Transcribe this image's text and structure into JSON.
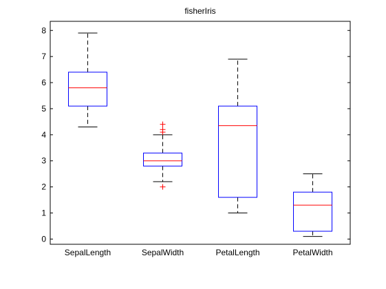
{
  "chart_data": {
    "type": "box",
    "title": "fisherIris",
    "xlabel": "",
    "ylabel": "",
    "ylim": [
      -0.2,
      8.35
    ],
    "yticks": [
      0,
      1,
      2,
      3,
      4,
      5,
      6,
      7,
      8
    ],
    "categories": [
      "SepalLength",
      "SepalWidth",
      "PetalLength",
      "PetalWidth"
    ],
    "boxes": [
      {
        "min": 4.3,
        "q1": 5.1,
        "median": 5.8,
        "q3": 6.4,
        "max": 7.9,
        "outliers": []
      },
      {
        "min": 2.2,
        "q1": 2.8,
        "median": 3.0,
        "q3": 3.3,
        "max": 4.0,
        "outliers": [
          4.1,
          4.2,
          4.4,
          2.0
        ]
      },
      {
        "min": 1.0,
        "q1": 1.6,
        "median": 4.35,
        "q3": 5.1,
        "max": 6.9,
        "outliers": []
      },
      {
        "min": 0.1,
        "q1": 0.3,
        "median": 1.3,
        "q3": 1.8,
        "max": 2.5,
        "outliers": []
      }
    ],
    "grid": false,
    "colors": {
      "box": "#0000ff",
      "median": "#ff0000",
      "whisker": "#000000",
      "outlier": "#ff0000"
    }
  }
}
